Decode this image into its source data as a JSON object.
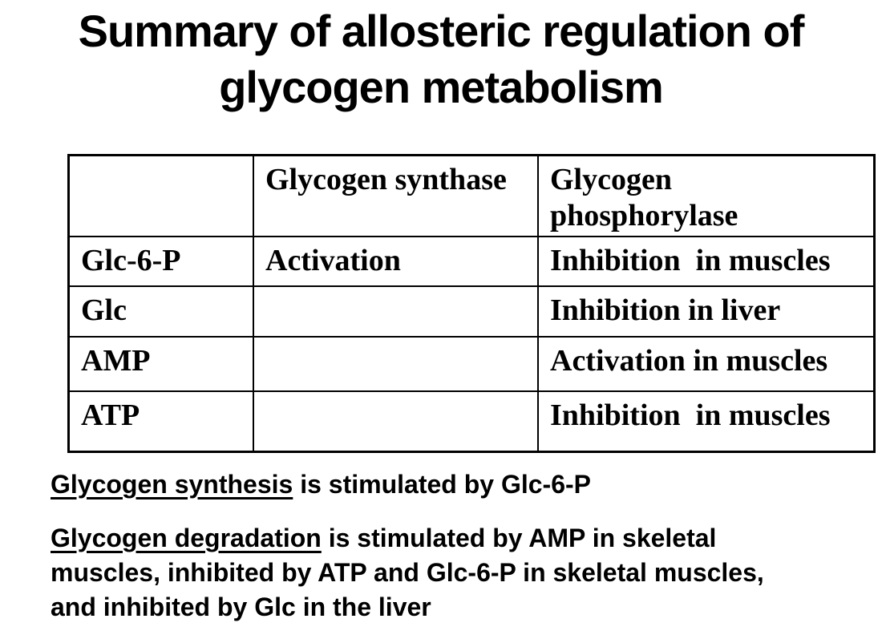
{
  "slide": {
    "title": {
      "line1": "Summary of allosteric regulation of",
      "line2": "glycogen metabolism"
    },
    "table": {
      "headers": [
        "",
        "Glycogen synthase",
        "Glycogen\nphosphorylase"
      ],
      "rows": [
        [
          "Glc-6-P",
          "Activation",
          "Inhibition  in muscles"
        ],
        [
          "Glc",
          "",
          "Inhibition in liver"
        ],
        [
          "AMP",
          "",
          "Activation in muscles"
        ],
        [
          "ATP",
          "",
          "Inhibition  in muscles"
        ]
      ]
    },
    "notes": [
      {
        "highlight": "Glycogen synthesis",
        "rest": " is stimulated by Glc-6-P"
      },
      {
        "highlight": "Glycogen degradation",
        "rest": " is stimulated by AMP in skeletal\nmuscles, inhibited by ATP and Glc-6-P in skeletal muscles,\nand inhibited by Glc in the liver"
      }
    ],
    "colors": {
      "text": "#000000",
      "background": "#ffffff",
      "table_border": "#000000"
    }
  }
}
